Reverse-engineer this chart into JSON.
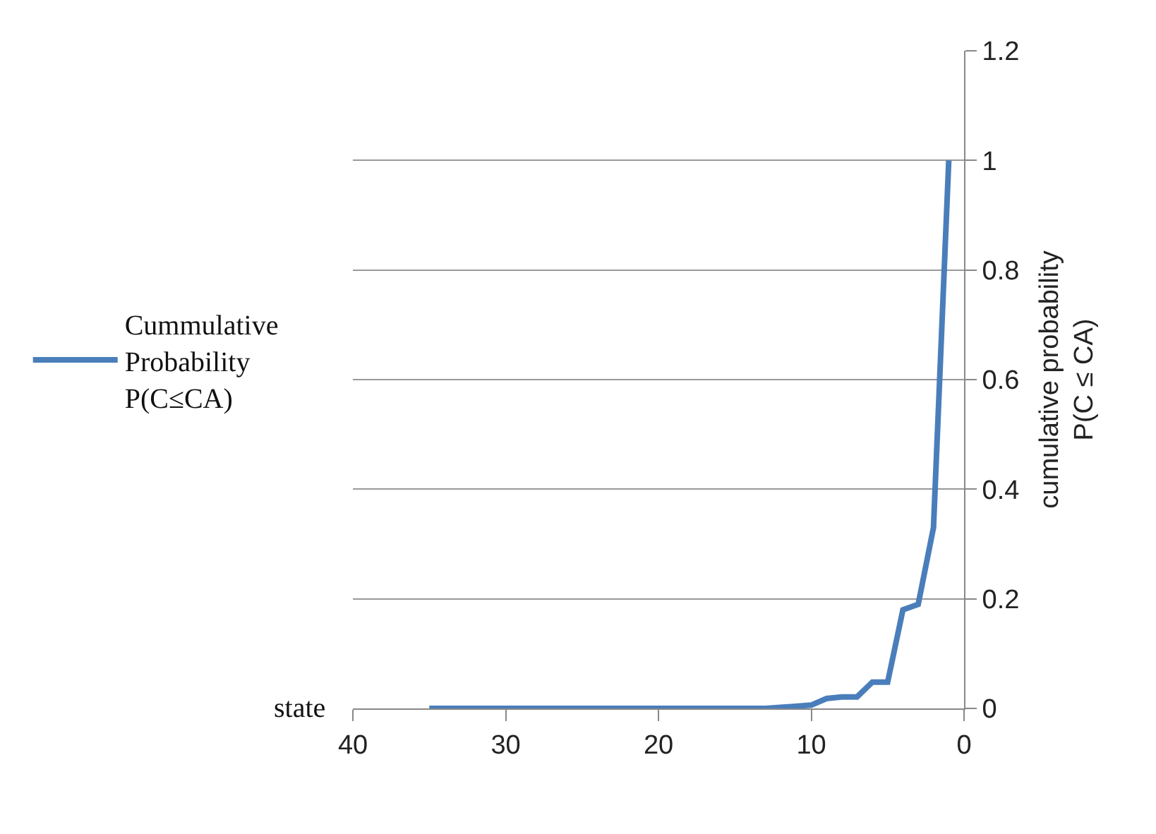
{
  "chart_data": {
    "type": "line",
    "xlabel": "state",
    "y2label": "cumulative probability\nP(C ≤ CA)",
    "x": [
      35,
      34,
      33,
      32,
      31,
      30,
      29,
      28,
      27,
      26,
      25,
      24,
      23,
      22,
      21,
      20,
      19,
      18,
      17,
      16,
      15,
      14,
      13,
      12,
      11,
      10,
      9,
      8,
      7,
      6,
      5,
      4,
      3,
      2,
      1
    ],
    "series": [
      {
        "name": "Cummulative\nProbability\nP(C≤CA)",
        "color": "#4a7ebb",
        "axis": "y2",
        "values": [
          0,
          0,
          0,
          0,
          0,
          0,
          0,
          0,
          0,
          0,
          0,
          0,
          0,
          0,
          0,
          0,
          0,
          0,
          0,
          0,
          0,
          0,
          0,
          0.002,
          0.004,
          0.006,
          0.018,
          0.021,
          0.021,
          0.048,
          0.048,
          0.18,
          0.19,
          0.33,
          1
        ]
      }
    ],
    "xlim": [
      40,
      0
    ],
    "xticks": [
      40,
      30,
      20,
      10,
      0
    ],
    "y2lim": [
      0,
      1.2
    ],
    "y2ticks": [
      0,
      0.2,
      0.4,
      0.6,
      0.8,
      1,
      1.2
    ],
    "grid": "y",
    "legend": "left",
    "marker": "none",
    "line_style": "solid"
  }
}
